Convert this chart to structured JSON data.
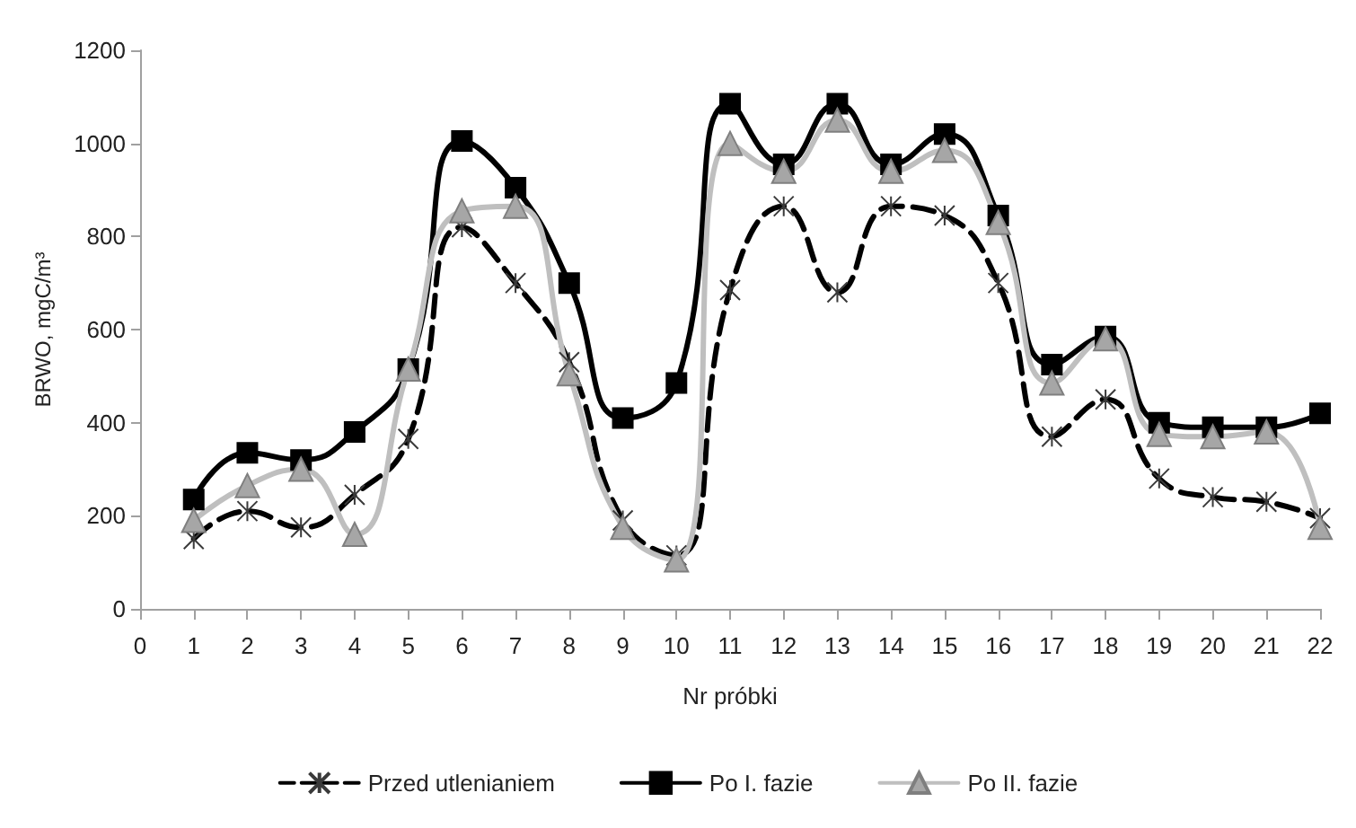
{
  "chart_data": {
    "type": "line",
    "xlabel": "Nr próbki",
    "ylabel": "BRWO, mgC/m³",
    "x": [
      1,
      2,
      3,
      4,
      5,
      6,
      7,
      8,
      9,
      10,
      11,
      12,
      13,
      14,
      15,
      16,
      17,
      18,
      19,
      20,
      21,
      22
    ],
    "series": [
      {
        "name": "Przed utlenianiem",
        "color": "#000000",
        "marker": "cross",
        "line_style": "dashed",
        "values": [
          150,
          210,
          175,
          245,
          365,
          820,
          700,
          530,
          190,
          115,
          685,
          865,
          680,
          865,
          845,
          700,
          370,
          450,
          280,
          240,
          230,
          195
        ]
      },
      {
        "name": "Po I. fazie",
        "color": "#000000",
        "marker": "square",
        "line_style": "solid",
        "values": [
          235,
          335,
          320,
          380,
          515,
          1005,
          905,
          700,
          410,
          485,
          1085,
          955,
          1085,
          955,
          1020,
          845,
          525,
          585,
          400,
          390,
          390,
          420
        ]
      },
      {
        "name": "Po II. fazie",
        "color": "#bfbfbf",
        "marker": "triangle",
        "line_style": "solid",
        "values": [
          190,
          265,
          300,
          160,
          515,
          855,
          865,
          505,
          175,
          105,
          1000,
          940,
          1050,
          940,
          985,
          830,
          485,
          580,
          375,
          370,
          380,
          175
        ]
      }
    ],
    "xlim": [
      0,
      22
    ],
    "xticks": [
      0,
      1,
      2,
      3,
      4,
      5,
      6,
      7,
      8,
      9,
      10,
      11,
      12,
      13,
      14,
      15,
      16,
      17,
      18,
      19,
      20,
      21,
      22
    ],
    "ylim": [
      0,
      1200
    ],
    "yticks": [
      0,
      200,
      400,
      600,
      800,
      1000,
      1200
    ],
    "grid": false,
    "legend": "bottom"
  }
}
